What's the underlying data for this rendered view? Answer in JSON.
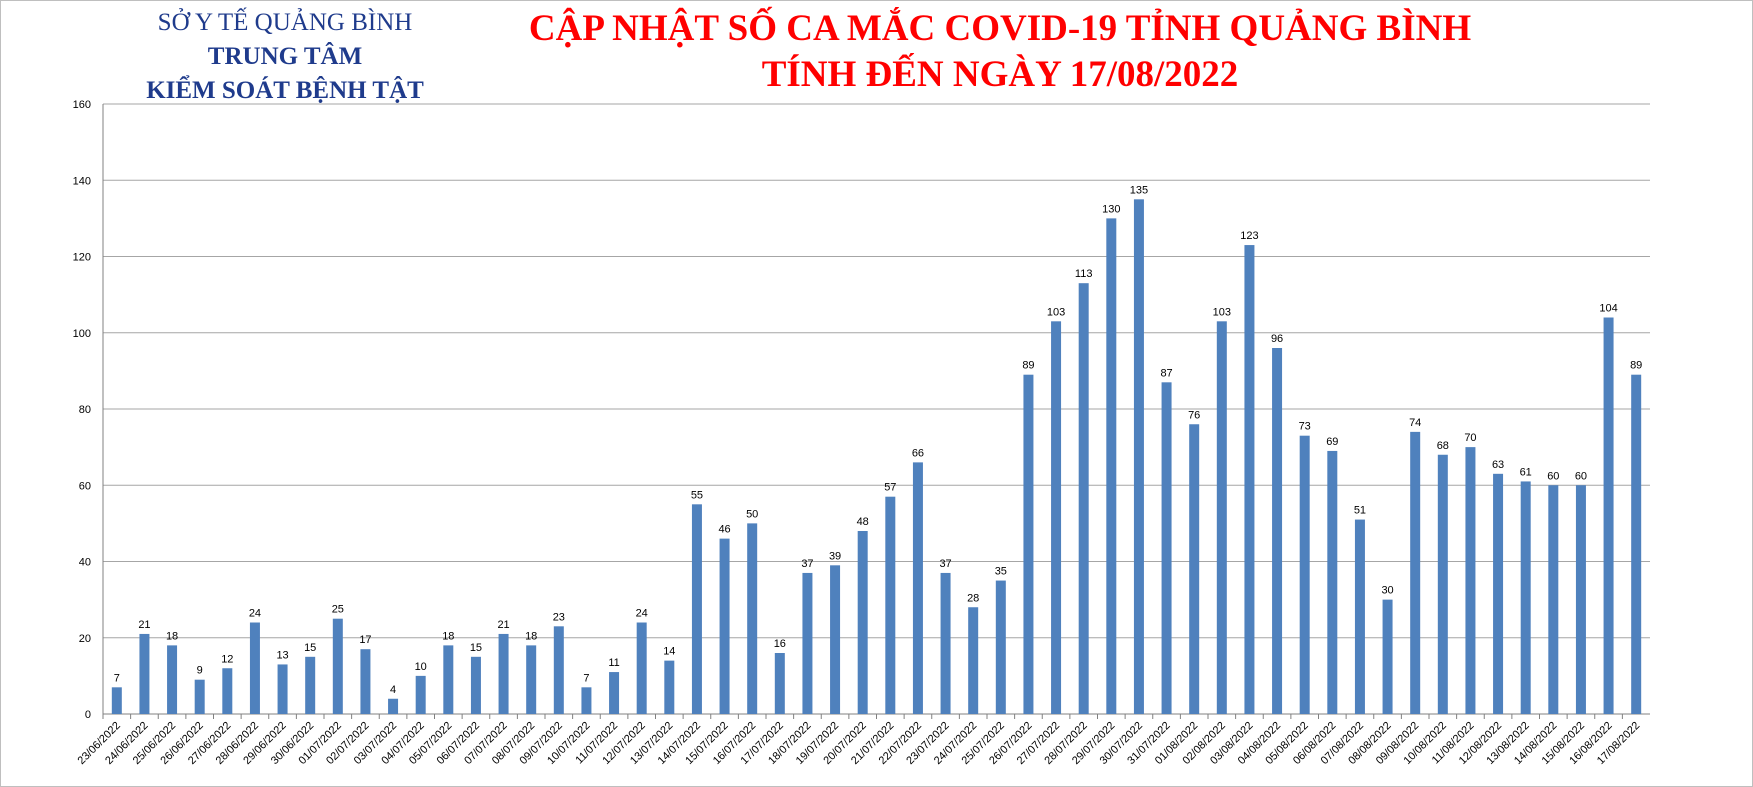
{
  "org": {
    "line1": "SỞ Y TẾ QUẢNG BÌNH",
    "line2": "TRUNG TÂM",
    "line3": "KIỂM SOÁT BỆNH TẬT"
  },
  "title": {
    "line1": "CẬP NHẬT SỐ CA MẮC COVID-19 TỈNH QUẢNG BÌNH",
    "line2": "TÍNH ĐẾN NGÀY 17/08/2022"
  },
  "colors": {
    "bar": "#4f81bd",
    "title": "#ff0000",
    "org": "#1f3b8c",
    "grid": "#a6a6a6"
  },
  "chart_data": {
    "type": "bar",
    "title": "CẬP NHẬT SỐ CA MẮC COVID-19 TỈNH QUẢNG BÌNH TÍNH ĐẾN NGÀY 17/08/2022",
    "xlabel": "",
    "ylabel": "",
    "ylim": [
      0,
      160
    ],
    "yticks": [
      0,
      20,
      40,
      60,
      80,
      100,
      120,
      140,
      160
    ],
    "grid": true,
    "legend": "none",
    "categories": [
      "23/06/2022",
      "24/06/2022",
      "25/06/2022",
      "26/06/2022",
      "27/06/2022",
      "28/06/2022",
      "29/06/2022",
      "30/06/2022",
      "01/07/2022",
      "02/07/2022",
      "03/07/2022",
      "04/07/2022",
      "05/07/2022",
      "06/07/2022",
      "07/07/2022",
      "08/07/2022",
      "09/07/2022",
      "10/07/2022",
      "11/07/2022",
      "12/07/2022",
      "13/07/2022",
      "14/07/2022",
      "15/07/2022",
      "16/07/2022",
      "17/07/2022",
      "18/07/2022",
      "19/07/2022",
      "20/07/2022",
      "21/07/2022",
      "22/07/2022",
      "23/07/2022",
      "24/07/2022",
      "25/07/2022",
      "26/07/2022",
      "27/07/2022",
      "28/07/2022",
      "29/07/2022",
      "30/07/2022",
      "31/07/2022",
      "01/08/2022",
      "02/08/2022",
      "03/08/2022",
      "04/08/2022",
      "05/08/2022",
      "06/08/2022",
      "07/08/2022",
      "08/08/2022",
      "09/08/2022",
      "10/08/2022",
      "11/08/2022",
      "12/08/2022",
      "13/08/2022",
      "14/08/2022",
      "15/08/2022",
      "16/08/2022",
      "17/08/2022"
    ],
    "values": [
      7,
      21,
      18,
      9,
      12,
      24,
      13,
      15,
      25,
      17,
      4,
      10,
      18,
      15,
      21,
      18,
      23,
      7,
      11,
      24,
      14,
      55,
      46,
      50,
      16,
      37,
      39,
      48,
      57,
      66,
      37,
      28,
      35,
      89,
      103,
      113,
      130,
      135,
      87,
      76,
      103,
      123,
      96,
      73,
      69,
      51,
      30,
      74,
      68,
      70,
      63,
      61,
      60,
      60,
      104,
      89
    ]
  }
}
